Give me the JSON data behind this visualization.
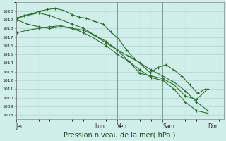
{
  "bg_color": "#d0eeea",
  "grid_color_major": "#b0d8d0",
  "grid_color_minor": "#c8e8e2",
  "line_color": "#2d6e2d",
  "xlabel": "Pression niveau de la mer( hPa )",
  "xlabel_fontsize": 7,
  "ylim": [
    1007.5,
    1021.0
  ],
  "yticks": [
    1008,
    1009,
    1010,
    1011,
    1012,
    1013,
    1014,
    1015,
    1016,
    1017,
    1018,
    1019,
    1020
  ],
  "day_labels": [
    "Jeu",
    "Lun",
    "Ven",
    "Sam",
    "Dim"
  ],
  "day_positions": [
    0.0,
    3.5,
    4.5,
    6.5,
    8.5
  ],
  "vline_color": "#557766",
  "xlim": [
    0.0,
    9.2
  ],
  "series1_x": [
    0.05,
    0.35,
    0.7,
    1.05,
    1.4,
    1.75,
    2.1,
    2.5,
    2.8,
    3.1,
    3.5,
    3.85,
    4.2,
    4.55,
    4.9,
    5.25,
    5.6,
    5.95,
    6.3,
    6.65,
    7.0,
    7.35,
    7.7,
    8.05,
    8.4
  ],
  "series1_y": [
    1019.2,
    1019.5,
    1019.7,
    1020.0,
    1020.2,
    1020.3,
    1020.1,
    1019.6,
    1019.3,
    1019.2,
    1018.8,
    1018.5,
    1017.6,
    1016.8,
    1015.5,
    1014.5,
    1013.7,
    1012.9,
    1013.5,
    1013.8,
    1013.2,
    1012.5,
    1011.5,
    1010.5,
    1011.0
  ],
  "series2_x": [
    0.05,
    0.5,
    1.0,
    1.5,
    2.0,
    2.5,
    3.0,
    3.5,
    4.0,
    4.5,
    5.0,
    5.5,
    6.0,
    6.5,
    7.0,
    7.5,
    8.0,
    8.5
  ],
  "series2_y": [
    1019.0,
    1018.5,
    1018.2,
    1018.0,
    1018.2,
    1018.0,
    1017.8,
    1017.2,
    1016.5,
    1015.5,
    1014.8,
    1014.0,
    1013.2,
    1012.5,
    1011.8,
    1010.8,
    1009.5,
    1008.5
  ],
  "series3_x": [
    0.05,
    0.5,
    1.0,
    1.5,
    2.0,
    2.5,
    3.0,
    3.5,
    4.0,
    4.5,
    5.0,
    5.5,
    6.0,
    6.5,
    7.0,
    7.5,
    8.0,
    8.5
  ],
  "series3_y": [
    1017.5,
    1017.8,
    1018.0,
    1018.2,
    1018.3,
    1018.0,
    1017.5,
    1016.8,
    1016.0,
    1015.0,
    1014.2,
    1013.2,
    1012.3,
    1012.0,
    1011.0,
    1009.5,
    1008.5,
    1008.2
  ],
  "series4_x": [
    0.05,
    0.5,
    1.0,
    1.5,
    2.0,
    2.5,
    3.0,
    3.5,
    4.0,
    4.5,
    5.0,
    5.5,
    6.0,
    6.5,
    7.0,
    7.5,
    8.0,
    8.5
  ],
  "series4_y": [
    1019.2,
    1019.5,
    1019.8,
    1019.5,
    1019.0,
    1018.5,
    1018.0,
    1017.2,
    1016.3,
    1015.5,
    1014.2,
    1012.8,
    1012.5,
    1012.2,
    1011.5,
    1010.2,
    1009.8,
    1011.0
  ]
}
